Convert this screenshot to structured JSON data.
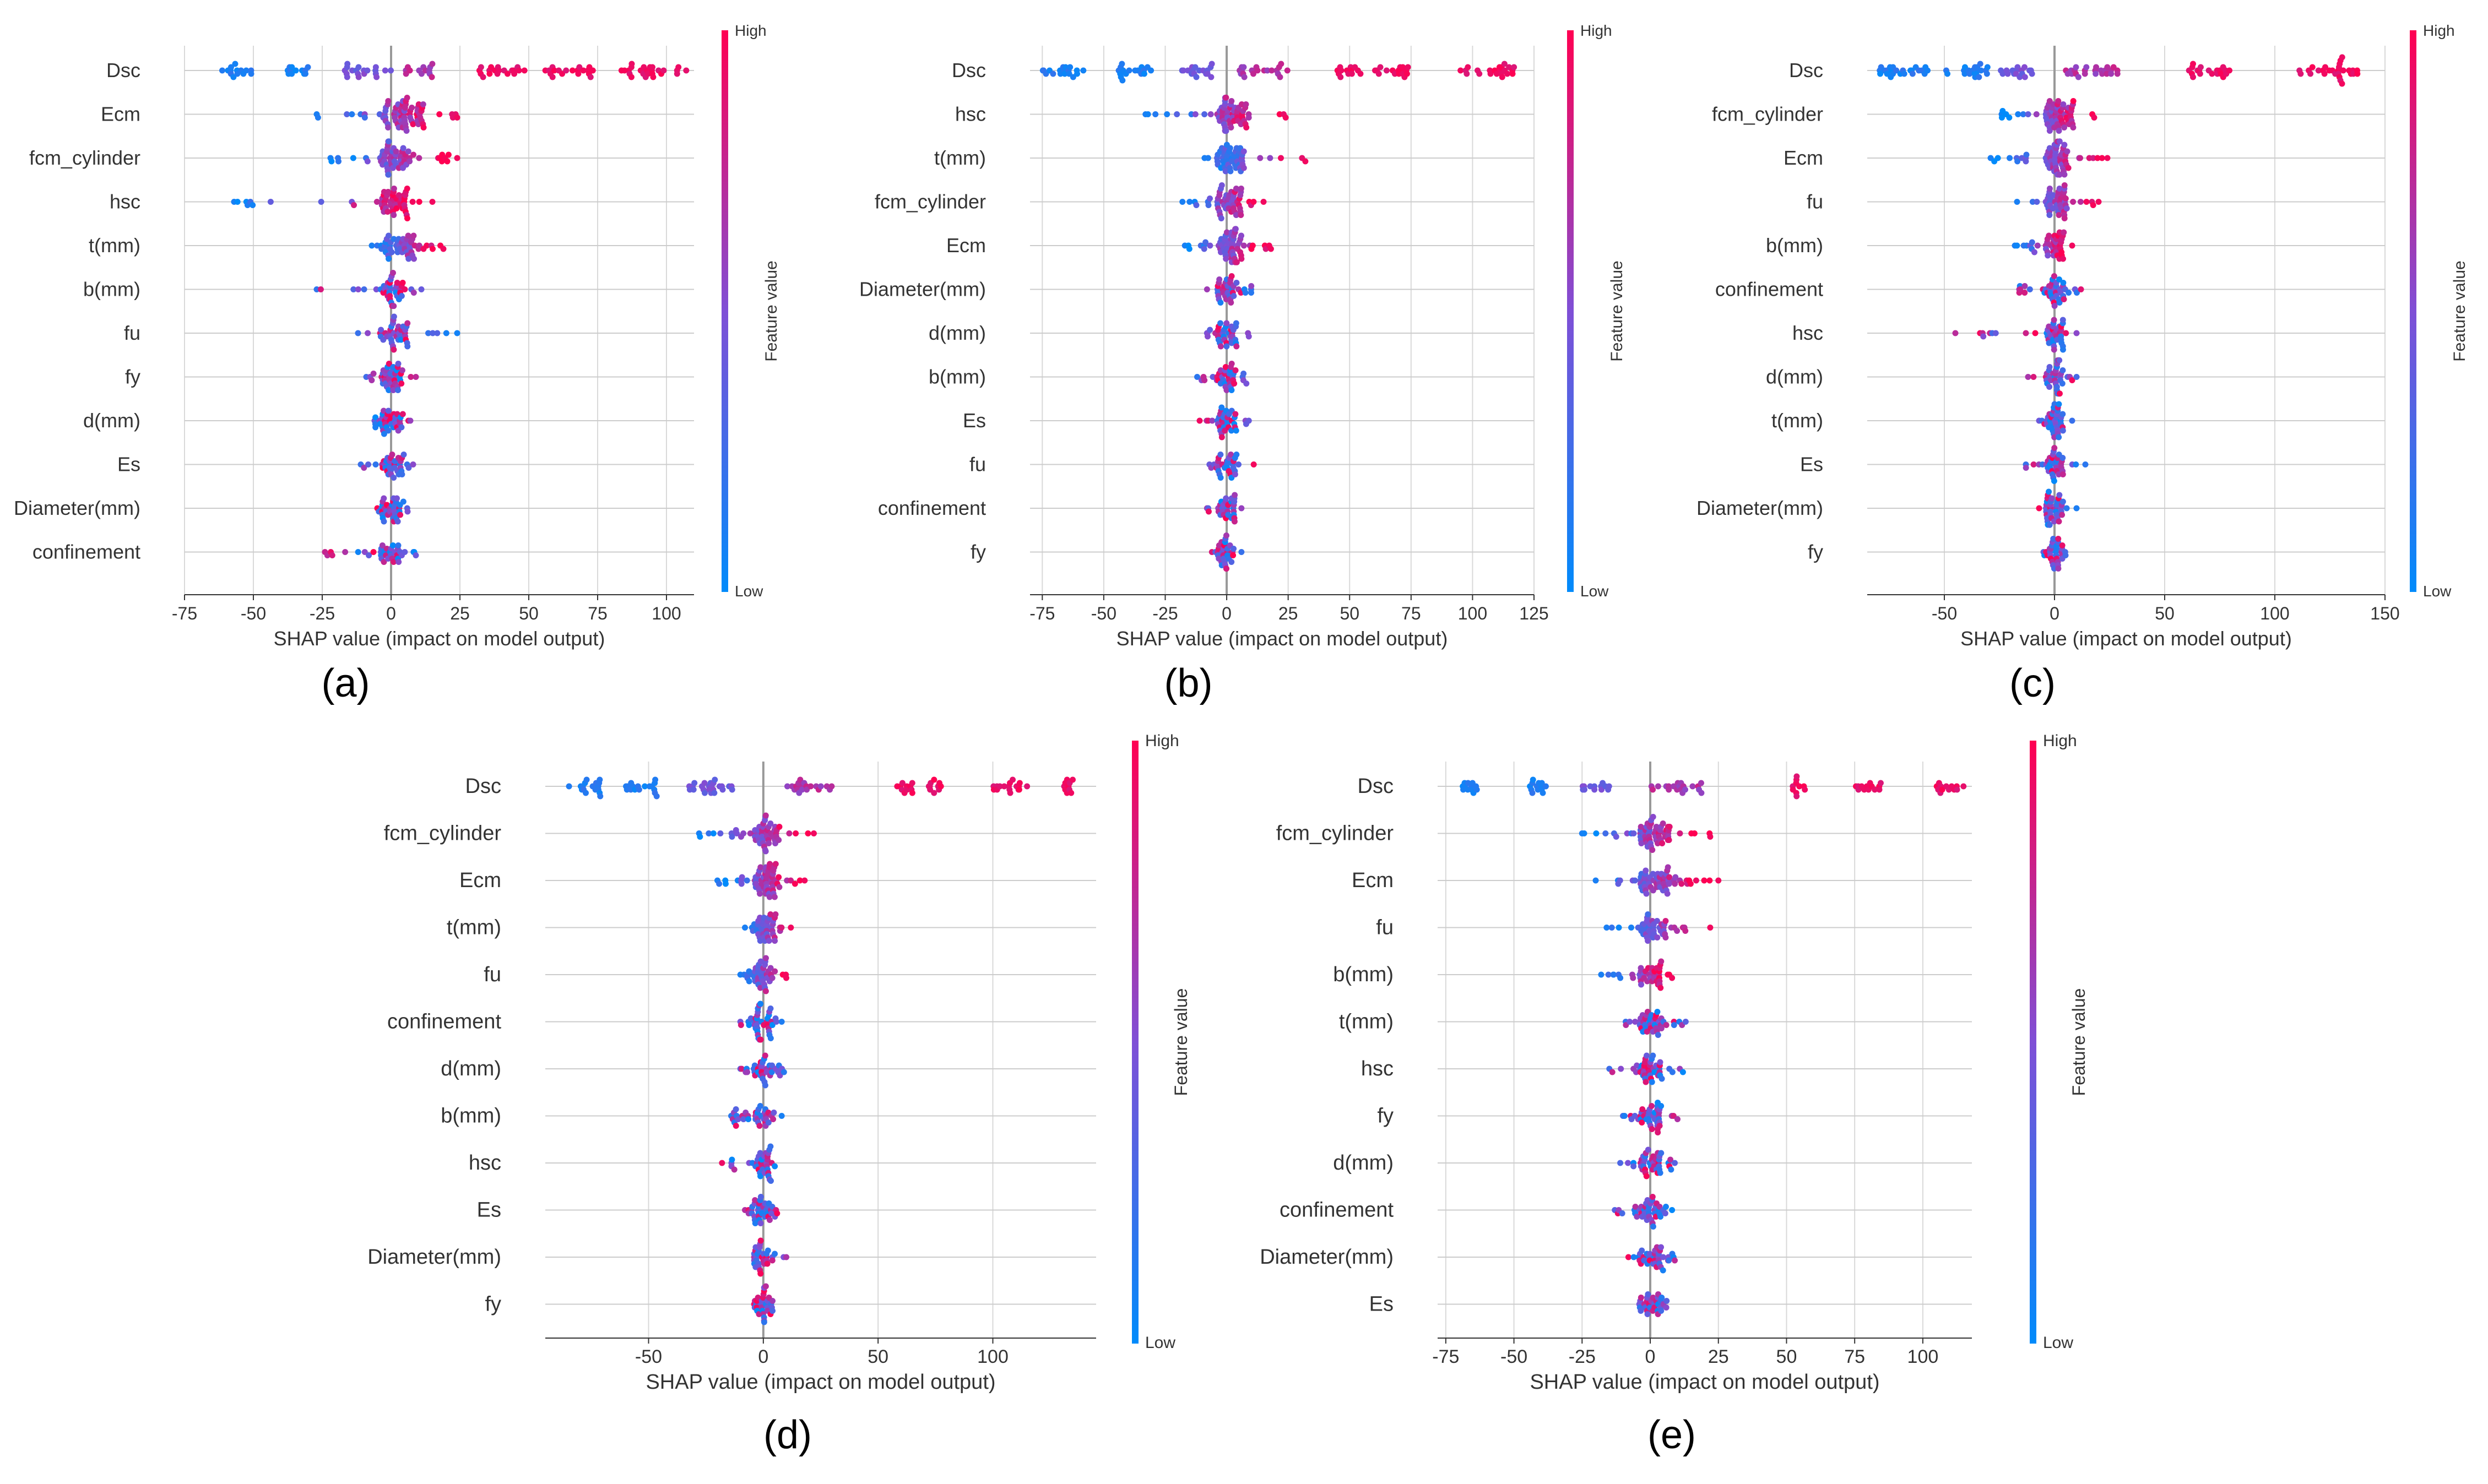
{
  "figure": {
    "colors": {
      "low": "#008bfb",
      "high": "#ff0052",
      "grid": "#d9d9d9",
      "axis": "#333333",
      "zero": "#999999"
    }
  },
  "chart_data": [
    {
      "id": "a",
      "type": "scatter",
      "subtype": "shap-beeswarm",
      "panel_label": "(a)",
      "xlabel": "SHAP value (impact on model output)",
      "xlim": [
        -75,
        110
      ],
      "xticks": [
        -75,
        -50,
        -25,
        0,
        25,
        50,
        75,
        100
      ],
      "colorbar": {
        "high": "High",
        "low": "Low",
        "title": "Feature value"
      },
      "features": [
        {
          "name": "Dsc",
          "range": [
            -68,
            108
          ],
          "mean": -5,
          "spread": 45,
          "n": 90,
          "pattern": "dsc",
          "clusters": [
            [
              -62,
              -50,
              "low"
            ],
            [
              -38,
              -30,
              "low"
            ],
            [
              -18,
              0,
              "mid"
            ],
            [
              5,
              15,
              "midhigh"
            ],
            [
              32,
              50,
              "high"
            ],
            [
              55,
              75,
              "high"
            ],
            [
              80,
              108,
              "high"
            ]
          ]
        },
        {
          "name": "Ecm",
          "range": [
            -27,
            24
          ],
          "center": 8,
          "n": 70
        },
        {
          "name": "fcm_cylinder",
          "range": [
            -22,
            24
          ],
          "center": 3,
          "n": 60
        },
        {
          "name": "hsc",
          "range": [
            -57,
            15
          ],
          "center": 2,
          "n": 55
        },
        {
          "name": "t(mm)",
          "range": [
            -7,
            19
          ],
          "center": 5,
          "n": 50
        },
        {
          "name": "b(mm)",
          "range": [
            -27,
            11
          ],
          "center": 1,
          "n": 40
        },
        {
          "name": "fu",
          "range": [
            -12,
            24
          ],
          "center": 2,
          "n": 40
        },
        {
          "name": "fy",
          "range": [
            -9,
            9
          ],
          "center": 0,
          "n": 40
        },
        {
          "name": "d(mm)",
          "range": [
            -6,
            7
          ],
          "center": 0,
          "n": 35
        },
        {
          "name": "Es",
          "range": [
            -11,
            8
          ],
          "center": 0,
          "n": 35
        },
        {
          "name": "Diameter(mm)",
          "range": [
            -5,
            6
          ],
          "center": 0,
          "n": 35
        },
        {
          "name": "confinement",
          "range": [
            -24,
            9
          ],
          "center": 0,
          "n": 35
        }
      ]
    },
    {
      "id": "b",
      "type": "scatter",
      "subtype": "shap-beeswarm",
      "panel_label": "(b)",
      "xlabel": "SHAP value (impact on model output)",
      "xlim": [
        -80,
        125
      ],
      "xticks": [
        -75,
        -50,
        -25,
        0,
        25,
        50,
        75,
        100,
        125
      ],
      "colorbar": {
        "high": "High",
        "low": "Low",
        "title": "Feature value"
      },
      "features": [
        {
          "name": "Dsc",
          "range": [
            -75,
            118
          ],
          "n": 90,
          "pattern": "dsc",
          "clusters": [
            [
              -75,
              -58,
              "low"
            ],
            [
              -45,
              -30,
              "low"
            ],
            [
              -20,
              -5,
              "mid"
            ],
            [
              5,
              25,
              "midhigh"
            ],
            [
              45,
              55,
              "high"
            ],
            [
              60,
              75,
              "high"
            ],
            [
              95,
              118,
              "high"
            ]
          ]
        },
        {
          "name": "hsc",
          "range": [
            -33,
            24
          ],
          "center": 5,
          "n": 60
        },
        {
          "name": "t(mm)",
          "range": [
            -9,
            32
          ],
          "center": 3,
          "n": 50
        },
        {
          "name": "fcm_cylinder",
          "range": [
            -18,
            15
          ],
          "center": 2,
          "n": 50
        },
        {
          "name": "Ecm",
          "range": [
            -17,
            18
          ],
          "center": 2,
          "n": 60
        },
        {
          "name": "Diameter(mm)",
          "range": [
            -8,
            10
          ],
          "center": 0,
          "n": 35
        },
        {
          "name": "d(mm)",
          "range": [
            -8,
            9
          ],
          "center": 0,
          "n": 35
        },
        {
          "name": "b(mm)",
          "range": [
            -12,
            8
          ],
          "center": 0,
          "n": 35
        },
        {
          "name": "Es",
          "range": [
            -11,
            9
          ],
          "center": 0,
          "n": 35
        },
        {
          "name": "fu",
          "range": [
            -7,
            11
          ],
          "center": 0,
          "n": 30
        },
        {
          "name": "confinement",
          "range": [
            -8,
            6
          ],
          "center": 0,
          "n": 30
        },
        {
          "name": "fy",
          "range": [
            -6,
            6
          ],
          "center": 0,
          "n": 30
        }
      ]
    },
    {
      "id": "c",
      "type": "scatter",
      "subtype": "shap-beeswarm",
      "panel_label": "(c)",
      "xlabel": "SHAP value (impact on model output)",
      "xlim": [
        -85,
        150
      ],
      "xticks": [
        -50,
        0,
        50,
        100,
        150
      ],
      "colorbar": {
        "high": "High",
        "low": "Low",
        "title": "Feature value"
      },
      "features": [
        {
          "name": "Dsc",
          "range": [
            -80,
            142
          ],
          "n": 90,
          "pattern": "dsc",
          "clusters": [
            [
              -80,
              -55,
              "low"
            ],
            [
              -50,
              -30,
              "low"
            ],
            [
              -25,
              -10,
              "mid"
            ],
            [
              5,
              30,
              "midhigh"
            ],
            [
              60,
              80,
              "high"
            ],
            [
              110,
              142,
              "high"
            ]
          ]
        },
        {
          "name": "fcm_cylinder",
          "range": [
            -24,
            18
          ],
          "center": 5,
          "n": 60
        },
        {
          "name": "Ecm",
          "range": [
            -29,
            24
          ],
          "center": 3,
          "n": 60
        },
        {
          "name": "fu",
          "range": [
            -17,
            20
          ],
          "center": 2,
          "n": 45
        },
        {
          "name": "b(mm)",
          "range": [
            -18,
            8
          ],
          "center": 0,
          "n": 40
        },
        {
          "name": "confinement",
          "range": [
            -16,
            12
          ],
          "center": 0,
          "n": 40
        },
        {
          "name": "hsc",
          "range": [
            -45,
            10
          ],
          "center": 0,
          "n": 40
        },
        {
          "name": "d(mm)",
          "range": [
            -12,
            10
          ],
          "center": 0,
          "n": 35
        },
        {
          "name": "t(mm)",
          "range": [
            -7,
            8
          ],
          "center": 0,
          "n": 35
        },
        {
          "name": "Es",
          "range": [
            -13,
            14
          ],
          "center": 0,
          "n": 35
        },
        {
          "name": "Diameter(mm)",
          "range": [
            -7,
            10
          ],
          "center": 0,
          "n": 35
        },
        {
          "name": "fy",
          "range": [
            -5,
            5
          ],
          "center": 0,
          "n": 30
        }
      ]
    },
    {
      "id": "d",
      "type": "scatter",
      "subtype": "shap-beeswarm",
      "panel_label": "(d)",
      "xlabel": "SHAP value (impact on model output)",
      "xlim": [
        -95,
        145
      ],
      "xticks": [
        -50,
        0,
        50,
        100
      ],
      "colorbar": {
        "high": "High",
        "low": "Low",
        "title": "Feature value"
      },
      "features": [
        {
          "name": "Dsc",
          "range": [
            -85,
            135
          ],
          "n": 90,
          "pattern": "dsc",
          "clusters": [
            [
              -85,
              -70,
              "low"
            ],
            [
              -60,
              -45,
              "low"
            ],
            [
              -35,
              -10,
              "mid"
            ],
            [
              10,
              30,
              "midhigh"
            ],
            [
              58,
              65,
              "high"
            ],
            [
              72,
              78,
              "high"
            ],
            [
              100,
              115,
              "high"
            ],
            [
              130,
              135,
              "high"
            ]
          ]
        },
        {
          "name": "fcm_cylinder",
          "range": [
            -28,
            22
          ],
          "center": 3,
          "n": 55
        },
        {
          "name": "Ecm",
          "range": [
            -20,
            18
          ],
          "center": 3,
          "n": 60
        },
        {
          "name": "t(mm)",
          "range": [
            -8,
            12
          ],
          "center": 2,
          "n": 40
        },
        {
          "name": "fu",
          "range": [
            -10,
            10
          ],
          "center": 0,
          "n": 40
        },
        {
          "name": "confinement",
          "range": [
            -10,
            8
          ],
          "center": 0,
          "n": 40
        },
        {
          "name": "d(mm)",
          "range": [
            -10,
            9
          ],
          "center": 0,
          "n": 35
        },
        {
          "name": "b(mm)",
          "range": [
            -14,
            8
          ],
          "center": 0,
          "n": 35
        },
        {
          "name": "hsc",
          "range": [
            -18,
            5
          ],
          "center": 0,
          "n": 35
        },
        {
          "name": "Es",
          "range": [
            -8,
            6
          ],
          "center": 0,
          "n": 35
        },
        {
          "name": "Diameter(mm)",
          "range": [
            -4,
            10
          ],
          "center": 0,
          "n": 30
        },
        {
          "name": "fy",
          "range": [
            -4,
            4
          ],
          "center": 0,
          "n": 30
        }
      ]
    },
    {
      "id": "e",
      "type": "scatter",
      "subtype": "shap-beeswarm",
      "panel_label": "(e)",
      "xlabel": "SHAP value (impact on model output)",
      "xlim": [
        -78,
        118
      ],
      "xticks": [
        -75,
        -50,
        -25,
        0,
        25,
        50,
        75,
        100
      ],
      "colorbar": {
        "high": "High",
        "low": "Low",
        "title": "Feature value"
      },
      "features": [
        {
          "name": "Dsc",
          "range": [
            -70,
            115
          ],
          "n": 90,
          "pattern": "dsc",
          "clusters": [
            [
              -70,
              -62,
              "low"
            ],
            [
              -48,
              -38,
              "low"
            ],
            [
              -25,
              -15,
              "mid"
            ],
            [
              0,
              20,
              "midhigh"
            ],
            [
              52,
              57,
              "high"
            ],
            [
              75,
              85,
              "high"
            ],
            [
              105,
              115,
              "high"
            ]
          ]
        },
        {
          "name": "fcm_cylinder",
          "range": [
            -25,
            22
          ],
          "center": 3,
          "n": 60
        },
        {
          "name": "Ecm",
          "range": [
            -20,
            25
          ],
          "center": 3,
          "n": 60
        },
        {
          "name": "fu",
          "range": [
            -16,
            22
          ],
          "center": 2,
          "n": 45
        },
        {
          "name": "b(mm)",
          "range": [
            -18,
            8
          ],
          "center": 0,
          "n": 40
        },
        {
          "name": "t(mm)",
          "range": [
            -9,
            13
          ],
          "center": 2,
          "n": 40
        },
        {
          "name": "hsc",
          "range": [
            -15,
            12
          ],
          "center": 0,
          "n": 40
        },
        {
          "name": "fy",
          "range": [
            -10,
            10
          ],
          "center": 0,
          "n": 40
        },
        {
          "name": "d(mm)",
          "range": [
            -11,
            9
          ],
          "center": 0,
          "n": 40
        },
        {
          "name": "confinement",
          "range": [
            -13,
            8
          ],
          "center": 0,
          "n": 40
        },
        {
          "name": "Diameter(mm)",
          "range": [
            -8,
            9
          ],
          "center": 0,
          "n": 35
        },
        {
          "name": "Es",
          "range": [
            -4,
            6
          ],
          "center": 0,
          "n": 30
        }
      ]
    }
  ]
}
